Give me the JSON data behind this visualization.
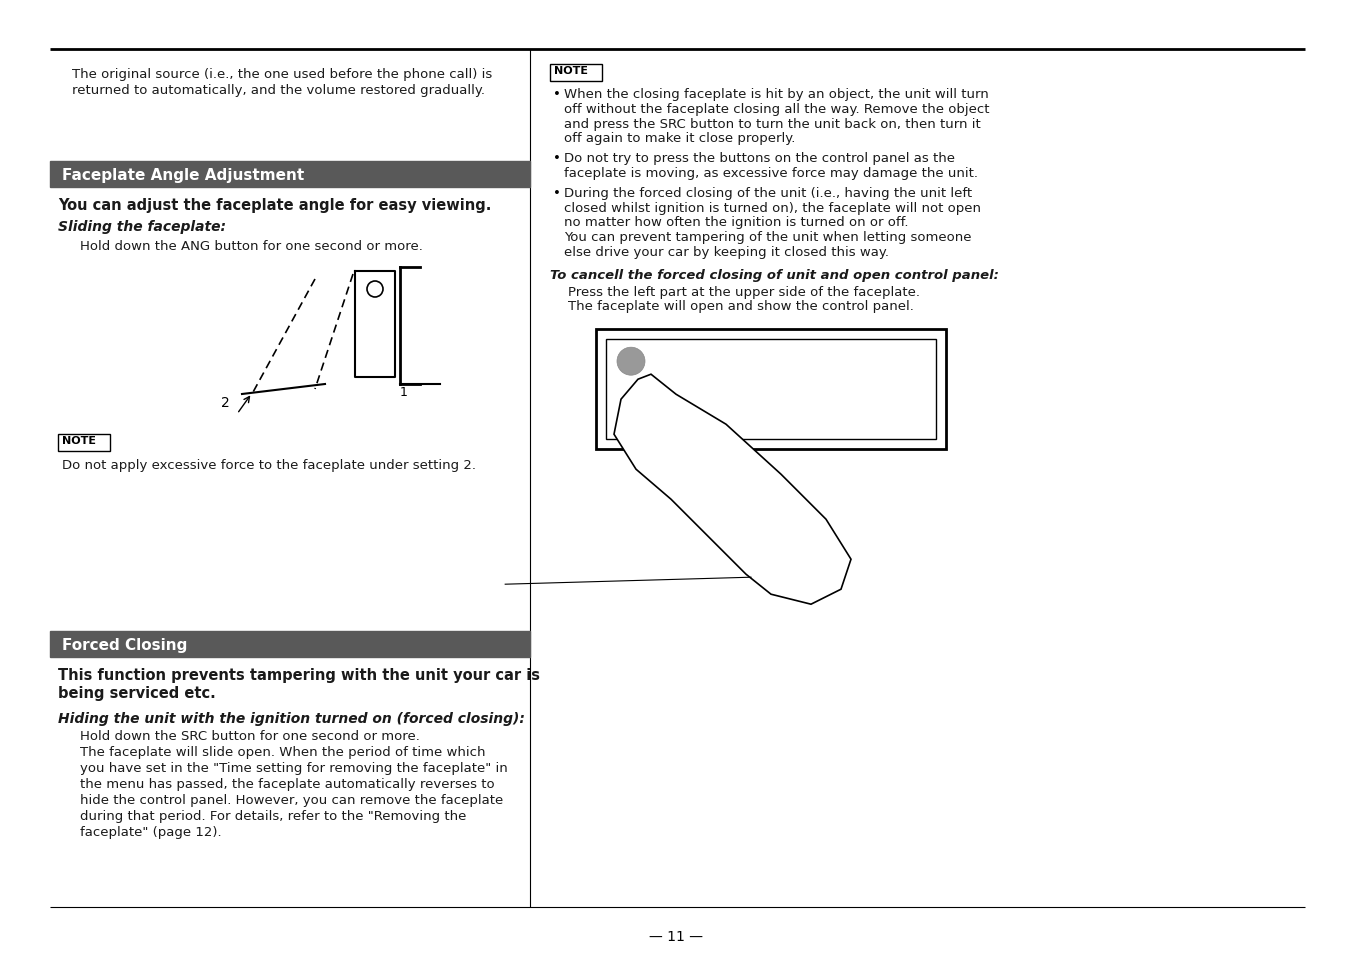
{
  "bg_color": "#ffffff",
  "text_color": "#1a1a1a",
  "header_bg": "#595959",
  "header_text_color": "#ffffff",
  "page_number": "— 11 —",
  "top_left_l1": "The original source (i.e., the one used before the phone call) is",
  "top_left_l2": "returned to automatically, and the volume restored gradually.",
  "sec1_header": "Faceplate Angle Adjustment",
  "sec1_intro": "You can adjust the faceplate angle for easy viewing.",
  "sec1_sub": "Sliding the faceplate:",
  "sec1_body": "Hold down the ANG button for one second or more.",
  "note1_label": "NOTE",
  "note1_body": "Do not apply excessive force to the faceplate under setting 2.",
  "right_note_label": "NOTE",
  "right_b1_l1": "When the closing faceplate is hit by an object, the unit will turn",
  "right_b1_l2": "off without the faceplate closing all the way. Remove the object",
  "right_b1_l3": "and press the SRC button to turn the unit back on, then turn it",
  "right_b1_l4": "off again to make it close properly.",
  "right_b2_l1": "Do not try to press the buttons on the control panel as the",
  "right_b2_l2": "faceplate is moving, as excessive force may damage the unit.",
  "right_b3_l1": "During the forced closing of the unit (i.e., having the unit left",
  "right_b3_l2": "closed whilst ignition is turned on), the faceplate will not open",
  "right_b3_l3": "no matter how often the ignition is turned on or off.",
  "right_b3_l4": "You can prevent tampering of the unit when letting someone",
  "right_b3_l5": "else drive your car by keeping it closed this way.",
  "cancel_bold": "To cancell the forced closing of unit and open control panel:",
  "cancel_l1": "Press the left part at the upper side of the faceplate.",
  "cancel_l2": "The faceplate will open and show the control panel.",
  "sec2_header": "Forced Closing",
  "sec2_intro_l1": "This function prevents tampering with the unit your car is",
  "sec2_intro_l2": "being serviced etc.",
  "sec2_sub": "Hiding the unit with the ignition turned on (forced closing):",
  "sec2_l1": "Hold down the SRC button for one second or more.",
  "sec2_l2": "The faceplate will slide open. When the period of time which",
  "sec2_l3": "you have set in the \"Time setting for removing the faceplate\" in",
  "sec2_l4": "the menu has passed, the faceplate automatically reverses to",
  "sec2_l5": "hide the control panel. However, you can remove the faceplate",
  "sec2_l6": "during that period. For details, refer to the \"Removing the",
  "sec2_l7": "faceplate\" (page 12)."
}
